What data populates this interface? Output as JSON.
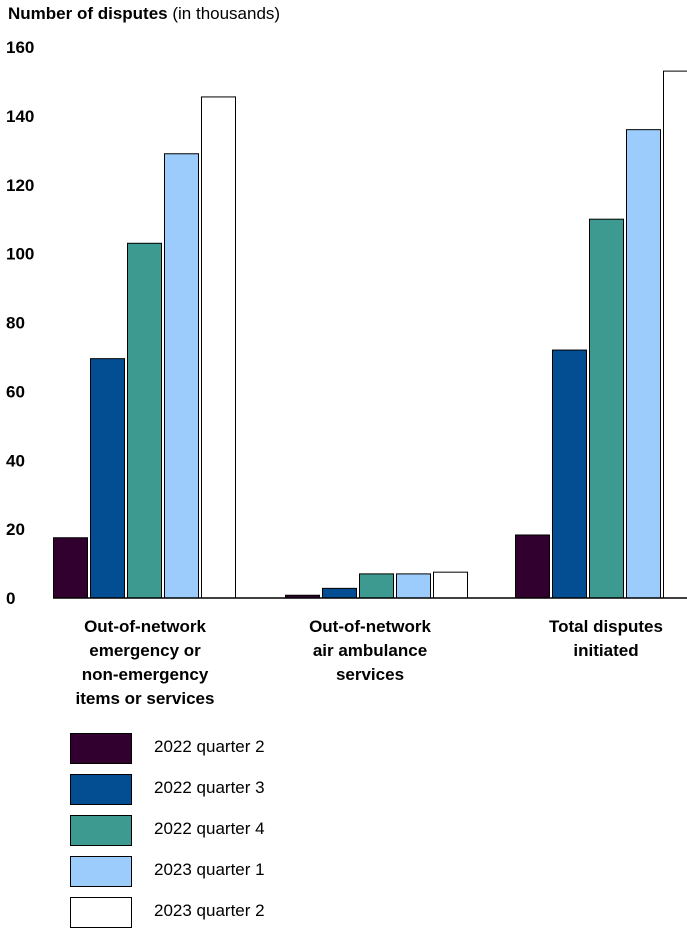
{
  "chart_data": {
    "type": "bar",
    "title": "Number of disputes",
    "title_suffix": "(in thousands)",
    "categories": [
      [
        "Out-of-network",
        "emergency or",
        "non-emergency",
        "items or services"
      ],
      [
        "Out-of-network",
        "air ambulance",
        "services"
      ],
      [
        "Total disputes",
        "initiated"
      ]
    ],
    "ylim": [
      0,
      160
    ],
    "yticks": [
      "0",
      "20",
      "40",
      "60",
      "80",
      "100",
      "120",
      "140",
      "160"
    ],
    "grid": false,
    "legend_position": "bottom-left",
    "series": [
      {
        "name": "2022 quarter 2",
        "color": "#32002f",
        "values": [
          17.5,
          0.8,
          18.3
        ]
      },
      {
        "name": "2022 quarter 3",
        "color": "#034e93",
        "values": [
          69.5,
          2.8,
          72
        ]
      },
      {
        "name": "2022 quarter 4",
        "color": "#3d9a91",
        "values": [
          103,
          7,
          110
        ]
      },
      {
        "name": "2023 quarter 1",
        "color": "#9cccfc",
        "values": [
          129,
          7,
          136
        ]
      },
      {
        "name": "2023 quarter 2",
        "color": "#ffffff",
        "values": [
          145.5,
          7.5,
          153
        ]
      }
    ]
  }
}
